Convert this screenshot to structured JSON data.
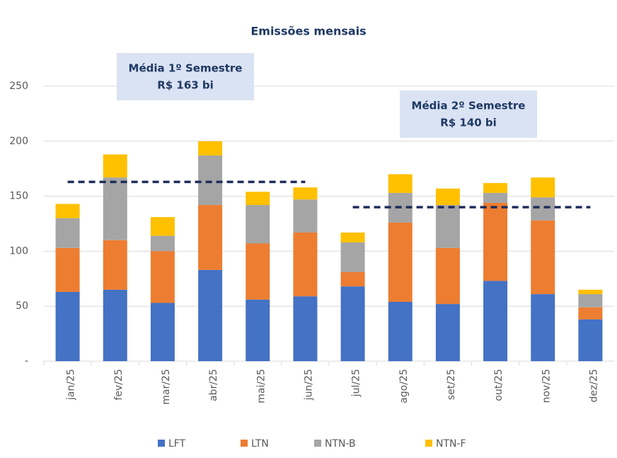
{
  "chart_data": {
    "type": "stacked_bar",
    "title": "Emissões mensais",
    "categories": [
      "jan/25",
      "fev/25",
      "mar/25",
      "abr/25",
      "mai/25",
      "jun/25",
      "jul/25",
      "ago/25",
      "set/25",
      "out/25",
      "nov/25",
      "dez/25"
    ],
    "series": [
      {
        "name": "LFT",
        "color": "#4472c4",
        "values": [
          63,
          65,
          53,
          83,
          56,
          59,
          68,
          54,
          52,
          73,
          61,
          38
        ]
      },
      {
        "name": "LTN",
        "color": "#ed7d31",
        "values": [
          40,
          45,
          47,
          59,
          51,
          58,
          13,
          72,
          51,
          71,
          67,
          11
        ]
      },
      {
        "name": "NTN-B",
        "color": "#a5a5a5",
        "values": [
          27,
          57,
          14,
          45,
          35,
          30,
          27,
          27,
          39,
          9,
          21,
          12
        ]
      },
      {
        "name": "NTN-F",
        "color": "#ffc000",
        "values": [
          13,
          21,
          17,
          13,
          12,
          11,
          9,
          17,
          15,
          9,
          18,
          4
        ]
      }
    ],
    "annotations": [
      {
        "text": [
          "Média 1º Semestre",
          "R$ 163 bi"
        ],
        "value": 163
      },
      {
        "text": [
          "Média 2º Semestre",
          "R$ 140 bi"
        ],
        "value": 140
      }
    ],
    "ylim": [
      0,
      250
    ],
    "yticks": [
      {
        "value": 0,
        "label": "-"
      },
      50,
      100,
      150,
      200,
      250
    ],
    "grid": true,
    "legend": "bottom"
  }
}
